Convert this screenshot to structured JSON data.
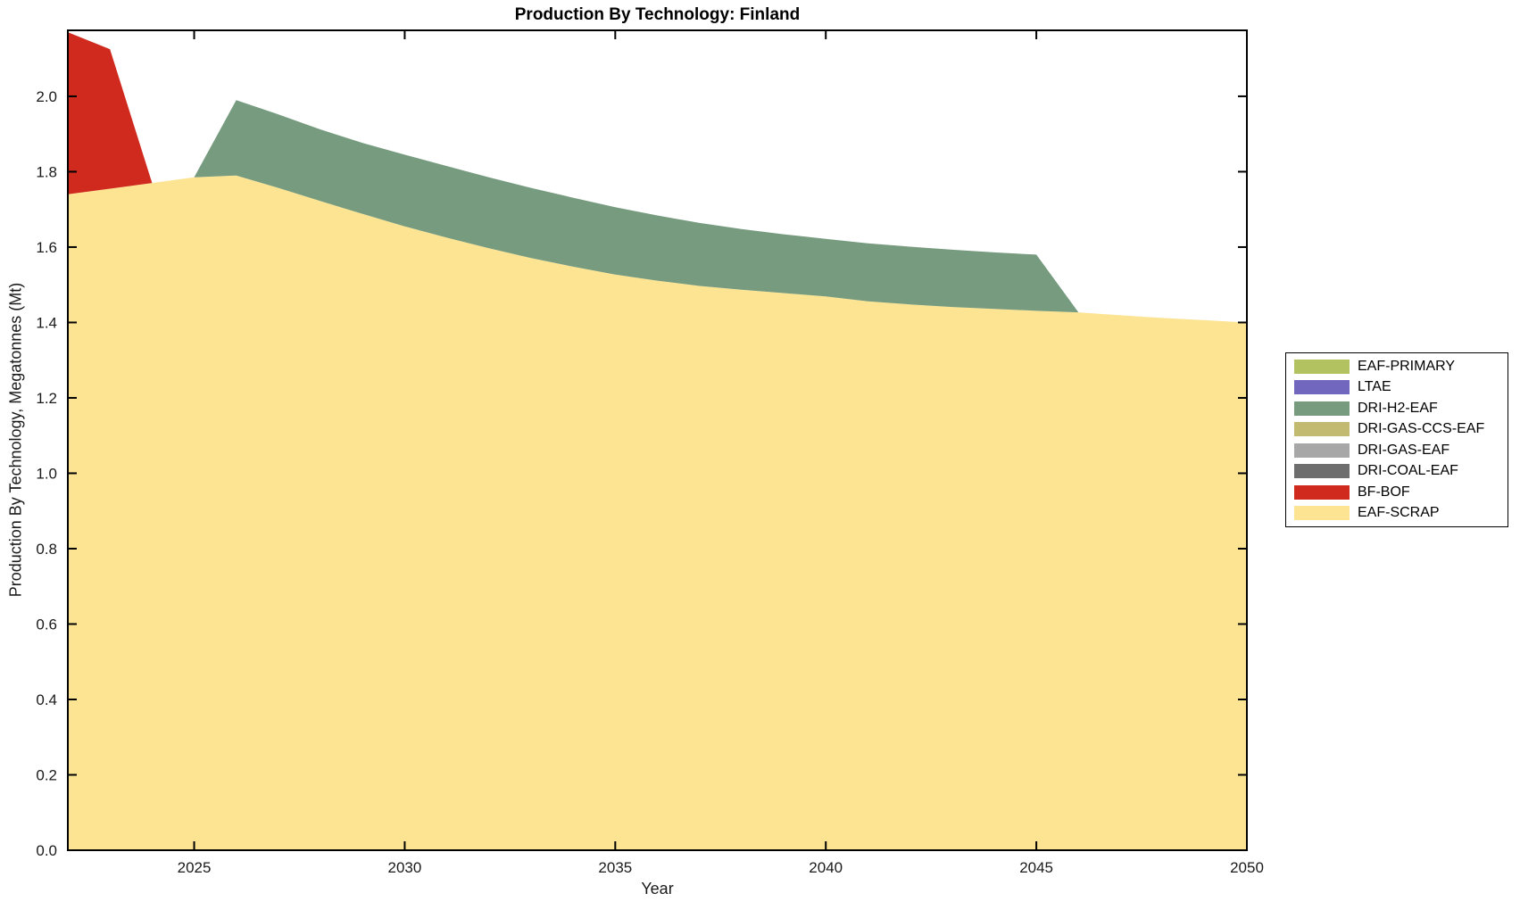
{
  "title": "Production By Technology: Finland",
  "axes": {
    "xlabel": "Year",
    "ylabel": "Production By Technology, Megatonnes (Mt)"
  },
  "chart_data": {
    "type": "area",
    "stacked": true,
    "grid": false,
    "legend_position": "outside-right",
    "xlim": [
      2022,
      2050
    ],
    "ylim": [
      0,
      2.175
    ],
    "xticks": [
      2025,
      2030,
      2035,
      2040,
      2045,
      2050
    ],
    "ytick_labels": [
      "0.0",
      "0.2",
      "0.4",
      "0.6",
      "0.8",
      "1.0",
      "1.2",
      "1.4",
      "1.6",
      "1.8",
      "2.0"
    ],
    "ytick_values": [
      0,
      0.2,
      0.4,
      0.6,
      0.8,
      1.0,
      1.2,
      1.4,
      1.6,
      1.8,
      2.0
    ],
    "x": [
      2022,
      2023,
      2024,
      2025,
      2026,
      2027,
      2028,
      2029,
      2030,
      2031,
      2032,
      2033,
      2034,
      2035,
      2036,
      2037,
      2038,
      2039,
      2040,
      2041,
      2042,
      2043,
      2044,
      2045,
      2046,
      2047,
      2048,
      2049,
      2050
    ],
    "series": [
      {
        "name": "EAF-SCRAP",
        "color": "#FCE492",
        "values": [
          1.74,
          1.755,
          1.77,
          1.785,
          1.79,
          1.757,
          1.722,
          1.688,
          1.655,
          1.625,
          1.597,
          1.571,
          1.548,
          1.527,
          1.511,
          1.497,
          1.487,
          1.478,
          1.469,
          1.456,
          1.448,
          1.441,
          1.436,
          1.431,
          1.427,
          1.419,
          1.412,
          1.406,
          1.4
        ]
      },
      {
        "name": "BF-BOF",
        "color": "#CF2A1D",
        "values": [
          0.43,
          0.37,
          0,
          0,
          0,
          0,
          0,
          0,
          0,
          0,
          0,
          0,
          0,
          0,
          0,
          0,
          0,
          0,
          0,
          0,
          0,
          0,
          0,
          0,
          0,
          0,
          0,
          0,
          0
        ]
      },
      {
        "name": "DRI-COAL-EAF",
        "color": "#6E6E6E",
        "values": [
          0,
          0,
          0,
          0,
          0,
          0,
          0,
          0,
          0,
          0,
          0,
          0,
          0,
          0,
          0,
          0,
          0,
          0,
          0,
          0,
          0,
          0,
          0,
          0,
          0,
          0,
          0,
          0,
          0
        ]
      },
      {
        "name": "DRI-GAS-EAF",
        "color": "#A7A7A7",
        "values": [
          0,
          0,
          0,
          0,
          0,
          0,
          0,
          0,
          0,
          0,
          0,
          0,
          0,
          0,
          0,
          0,
          0,
          0,
          0,
          0,
          0,
          0,
          0,
          0,
          0,
          0,
          0,
          0,
          0
        ]
      },
      {
        "name": "DRI-GAS-CCS-EAF",
        "color": "#C3BA72",
        "values": [
          0,
          0,
          0,
          0,
          0,
          0,
          0,
          0,
          0,
          0,
          0,
          0,
          0,
          0,
          0,
          0,
          0,
          0,
          0,
          0,
          0,
          0,
          0,
          0,
          0,
          0,
          0,
          0,
          0
        ]
      },
      {
        "name": "DRI-H2-EAF",
        "color": "#769B7F",
        "values": [
          0,
          0,
          0,
          0,
          0.2,
          0.195,
          0.19,
          0.188,
          0.19,
          0.19,
          0.188,
          0.186,
          0.183,
          0.179,
          0.173,
          0.167,
          0.161,
          0.156,
          0.153,
          0.154,
          0.153,
          0.152,
          0.15,
          0.149,
          0,
          0,
          0,
          0,
          0
        ]
      },
      {
        "name": "LTAE",
        "color": "#7167BE",
        "values": [
          0,
          0,
          0,
          0,
          0,
          0,
          0,
          0,
          0,
          0,
          0,
          0,
          0,
          0,
          0,
          0,
          0,
          0,
          0,
          0,
          0,
          0,
          0,
          0,
          0,
          0,
          0,
          0,
          0
        ]
      },
      {
        "name": "EAF-PRIMARY",
        "color": "#B3C261",
        "values": [
          0,
          0,
          0,
          0,
          0,
          0,
          0,
          0,
          0,
          0,
          0,
          0,
          0,
          0,
          0,
          0,
          0,
          0,
          0,
          0,
          0,
          0,
          0,
          0,
          0,
          0,
          0,
          0,
          0
        ]
      }
    ],
    "legend_order": [
      "EAF-PRIMARY",
      "LTAE",
      "DRI-H2-EAF",
      "DRI-GAS-CCS-EAF",
      "DRI-GAS-EAF",
      "DRI-COAL-EAF",
      "BF-BOF",
      "EAF-SCRAP"
    ]
  }
}
